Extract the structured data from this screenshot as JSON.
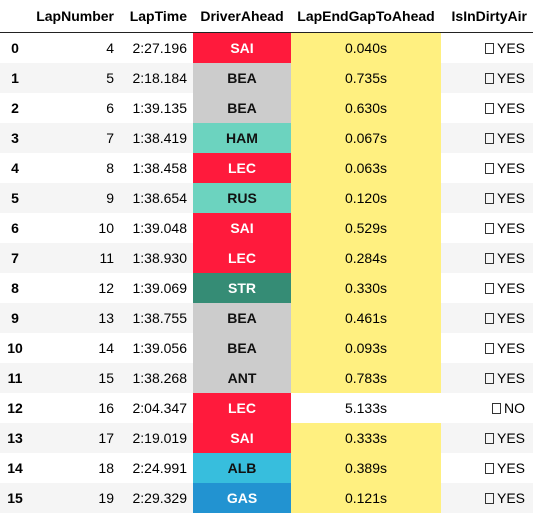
{
  "table": {
    "columns": [
      "LapNumber",
      "LapTime",
      "DriverAhead",
      "LapEndGapToAhead",
      "IsInDirtyAir"
    ],
    "rows": [
      {
        "index": "0",
        "lap": "4",
        "time": "2:27.196",
        "driver": "SAI",
        "driver_bg": "#ff1a3c",
        "driver_fg": "#ffffff",
        "gap": "0.040s",
        "gap_bg": "#fff080",
        "dirty_icon": "unknown-glyph-icon",
        "dirty": "YES"
      },
      {
        "index": "1",
        "lap": "5",
        "time": "2:18.184",
        "driver": "BEA",
        "driver_bg": "#cccccc",
        "driver_fg": "#111111",
        "gap": "0.735s",
        "gap_bg": "#fff080",
        "dirty_icon": "unknown-glyph-icon",
        "dirty": "YES"
      },
      {
        "index": "2",
        "lap": "6",
        "time": "1:39.135",
        "driver": "BEA",
        "driver_bg": "#cccccc",
        "driver_fg": "#111111",
        "gap": "0.630s",
        "gap_bg": "#fff080",
        "dirty_icon": "unknown-glyph-icon",
        "dirty": "YES"
      },
      {
        "index": "3",
        "lap": "7",
        "time": "1:38.419",
        "driver": "HAM",
        "driver_bg": "#6cd3bf",
        "driver_fg": "#111111",
        "gap": "0.067s",
        "gap_bg": "#fff080",
        "dirty_icon": "unknown-glyph-icon",
        "dirty": "YES"
      },
      {
        "index": "4",
        "lap": "8",
        "time": "1:38.458",
        "driver": "LEC",
        "driver_bg": "#ff1a3c",
        "driver_fg": "#ffffff",
        "gap": "0.063s",
        "gap_bg": "#fff080",
        "dirty_icon": "unknown-glyph-icon",
        "dirty": "YES"
      },
      {
        "index": "5",
        "lap": "9",
        "time": "1:38.654",
        "driver": "RUS",
        "driver_bg": "#6cd3bf",
        "driver_fg": "#111111",
        "gap": "0.120s",
        "gap_bg": "#fff080",
        "dirty_icon": "unknown-glyph-icon",
        "dirty": "YES"
      },
      {
        "index": "6",
        "lap": "10",
        "time": "1:39.048",
        "driver": "SAI",
        "driver_bg": "#ff1a3c",
        "driver_fg": "#ffffff",
        "gap": "0.529s",
        "gap_bg": "#fff080",
        "dirty_icon": "unknown-glyph-icon",
        "dirty": "YES"
      },
      {
        "index": "7",
        "lap": "11",
        "time": "1:38.930",
        "driver": "LEC",
        "driver_bg": "#ff1a3c",
        "driver_fg": "#ffffff",
        "gap": "0.284s",
        "gap_bg": "#fff080",
        "dirty_icon": "unknown-glyph-icon",
        "dirty": "YES"
      },
      {
        "index": "8",
        "lap": "12",
        "time": "1:39.069",
        "driver": "STR",
        "driver_bg": "#358c75",
        "driver_fg": "#ffffff",
        "gap": "0.330s",
        "gap_bg": "#fff080",
        "dirty_icon": "unknown-glyph-icon",
        "dirty": "YES"
      },
      {
        "index": "9",
        "lap": "13",
        "time": "1:38.755",
        "driver": "BEA",
        "driver_bg": "#cccccc",
        "driver_fg": "#111111",
        "gap": "0.461s",
        "gap_bg": "#fff080",
        "dirty_icon": "unknown-glyph-icon",
        "dirty": "YES"
      },
      {
        "index": "10",
        "lap": "14",
        "time": "1:39.056",
        "driver": "BEA",
        "driver_bg": "#cccccc",
        "driver_fg": "#111111",
        "gap": "0.093s",
        "gap_bg": "#fff080",
        "dirty_icon": "unknown-glyph-icon",
        "dirty": "YES"
      },
      {
        "index": "11",
        "lap": "15",
        "time": "1:38.268",
        "driver": "ANT",
        "driver_bg": "#cccccc",
        "driver_fg": "#111111",
        "gap": "0.783s",
        "gap_bg": "#fff080",
        "dirty_icon": "unknown-glyph-icon",
        "dirty": "YES"
      },
      {
        "index": "12",
        "lap": "16",
        "time": "2:04.347",
        "driver": "LEC",
        "driver_bg": "#ff1a3c",
        "driver_fg": "#ffffff",
        "gap": "5.133s",
        "gap_bg": "",
        "dirty_icon": "unknown-glyph-icon",
        "dirty": "NO"
      },
      {
        "index": "13",
        "lap": "17",
        "time": "2:19.019",
        "driver": "SAI",
        "driver_bg": "#ff1a3c",
        "driver_fg": "#ffffff",
        "gap": "0.333s",
        "gap_bg": "#fff080",
        "dirty_icon": "unknown-glyph-icon",
        "dirty": "YES"
      },
      {
        "index": "14",
        "lap": "18",
        "time": "2:24.991",
        "driver": "ALB",
        "driver_bg": "#37bedd",
        "driver_fg": "#111111",
        "gap": "0.389s",
        "gap_bg": "#fff080",
        "dirty_icon": "unknown-glyph-icon",
        "dirty": "YES"
      },
      {
        "index": "15",
        "lap": "19",
        "time": "2:29.329",
        "driver": "GAS",
        "driver_bg": "#2293d1",
        "driver_fg": "#ffffff",
        "gap": "0.121s",
        "gap_bg": "#fff080",
        "dirty_icon": "unknown-glyph-icon",
        "dirty": "YES"
      }
    ]
  }
}
